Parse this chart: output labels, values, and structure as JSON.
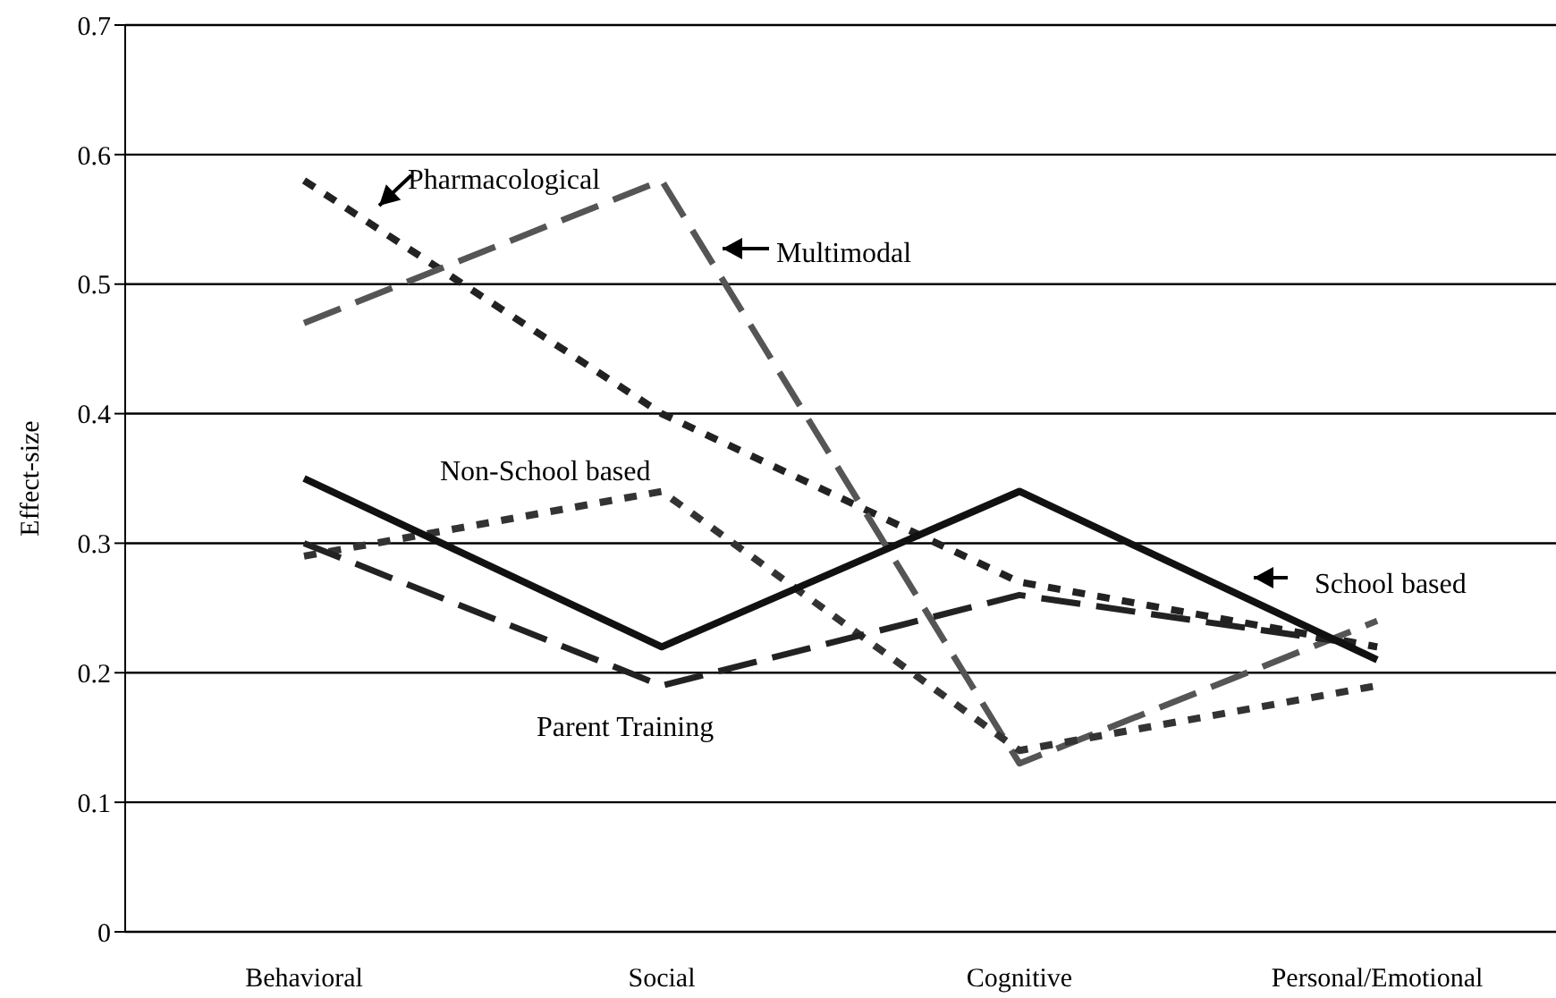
{
  "chart_data": {
    "type": "line",
    "ylabel": "Effect-size",
    "categories": [
      "Behavioral",
      "Social",
      "Cognitive",
      "Personal/Emotional"
    ],
    "ylim": [
      0,
      0.7
    ],
    "yticks": [
      0,
      0.1,
      0.2,
      0.3,
      0.4,
      0.5,
      0.6,
      0.7
    ],
    "grid": "y",
    "legend": false,
    "marker": "none",
    "series": [
      {
        "name": "Pharmacological",
        "color": "#222222",
        "line_style": "dotted",
        "values": [
          0.58,
          0.4,
          0.27,
          0.22
        ]
      },
      {
        "name": "Multimodal",
        "color": "#555555",
        "line_style": "dashed",
        "values": [
          0.47,
          0.58,
          0.13,
          0.24
        ]
      },
      {
        "name": "Non-School based",
        "color": "#333333",
        "line_style": "dotted",
        "values": [
          0.29,
          0.34,
          0.14,
          0.19
        ]
      },
      {
        "name": "Parent Training",
        "color": "#222222",
        "line_style": "dashed",
        "values": [
          0.3,
          0.19,
          0.26,
          0.22
        ]
      },
      {
        "name": "School based",
        "color": "#111111",
        "line_style": "solid",
        "values": [
          0.35,
          0.22,
          0.34,
          0.21
        ]
      }
    ]
  }
}
